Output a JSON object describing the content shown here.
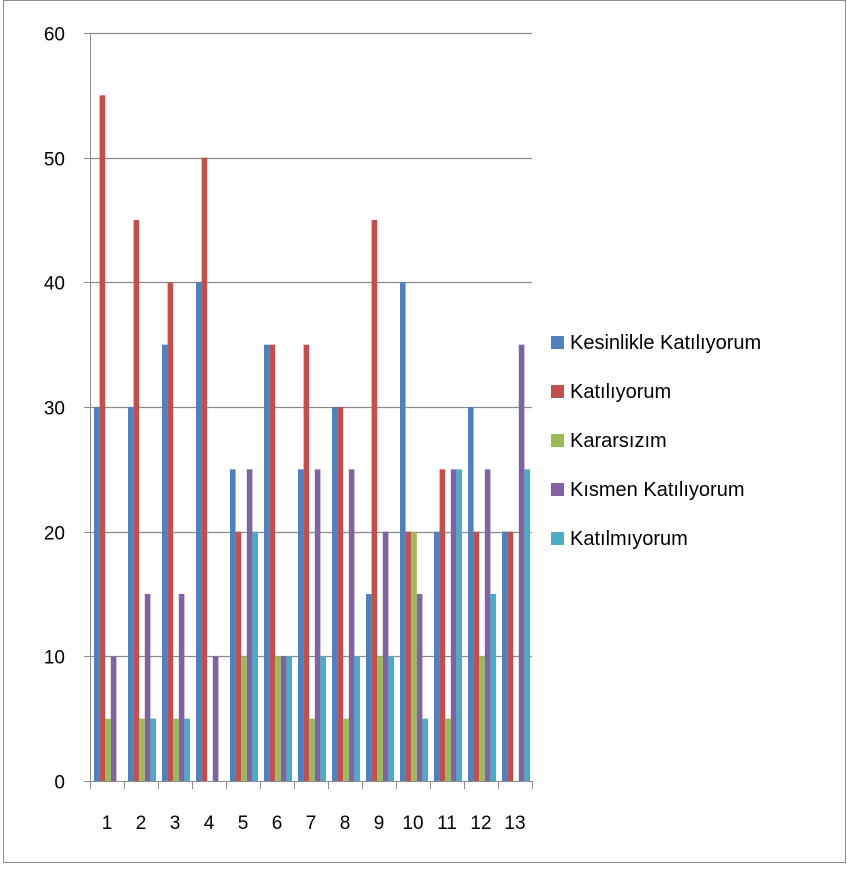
{
  "chart_data": {
    "type": "bar",
    "categories": [
      "1",
      "2",
      "3",
      "4",
      "5",
      "6",
      "7",
      "8",
      "9",
      "10",
      "11",
      "12",
      "13"
    ],
    "series": [
      {
        "name": "Kesinlikle Katılıyorum",
        "color": "#4F81BD",
        "values": [
          30,
          30,
          35,
          40,
          25,
          35,
          25,
          30,
          15,
          40,
          20,
          30,
          20
        ]
      },
      {
        "name": "Katılıyorum",
        "color": "#C0504D",
        "values": [
          55,
          45,
          40,
          50,
          20,
          35,
          35,
          30,
          45,
          20,
          25,
          20,
          20
        ]
      },
      {
        "name": "Kararsızım",
        "color": "#9BBB59",
        "values": [
          5,
          5,
          5,
          0,
          10,
          10,
          5,
          5,
          10,
          20,
          5,
          10,
          0
        ]
      },
      {
        "name": "Kısmen Katılıyorum",
        "color": "#8064A2",
        "values": [
          10,
          15,
          15,
          10,
          25,
          10,
          25,
          25,
          20,
          15,
          25,
          25,
          35
        ]
      },
      {
        "name": "Katılmıyorum",
        "color": "#4BACC6",
        "values": [
          0,
          5,
          5,
          0,
          20,
          10,
          10,
          10,
          10,
          5,
          25,
          15,
          25
        ]
      }
    ],
    "y_ticks": [
      "0",
      "10",
      "20",
      "30",
      "40",
      "50",
      "60"
    ],
    "ylim": [
      0,
      60
    ],
    "grid": true,
    "legend_position": "right"
  }
}
